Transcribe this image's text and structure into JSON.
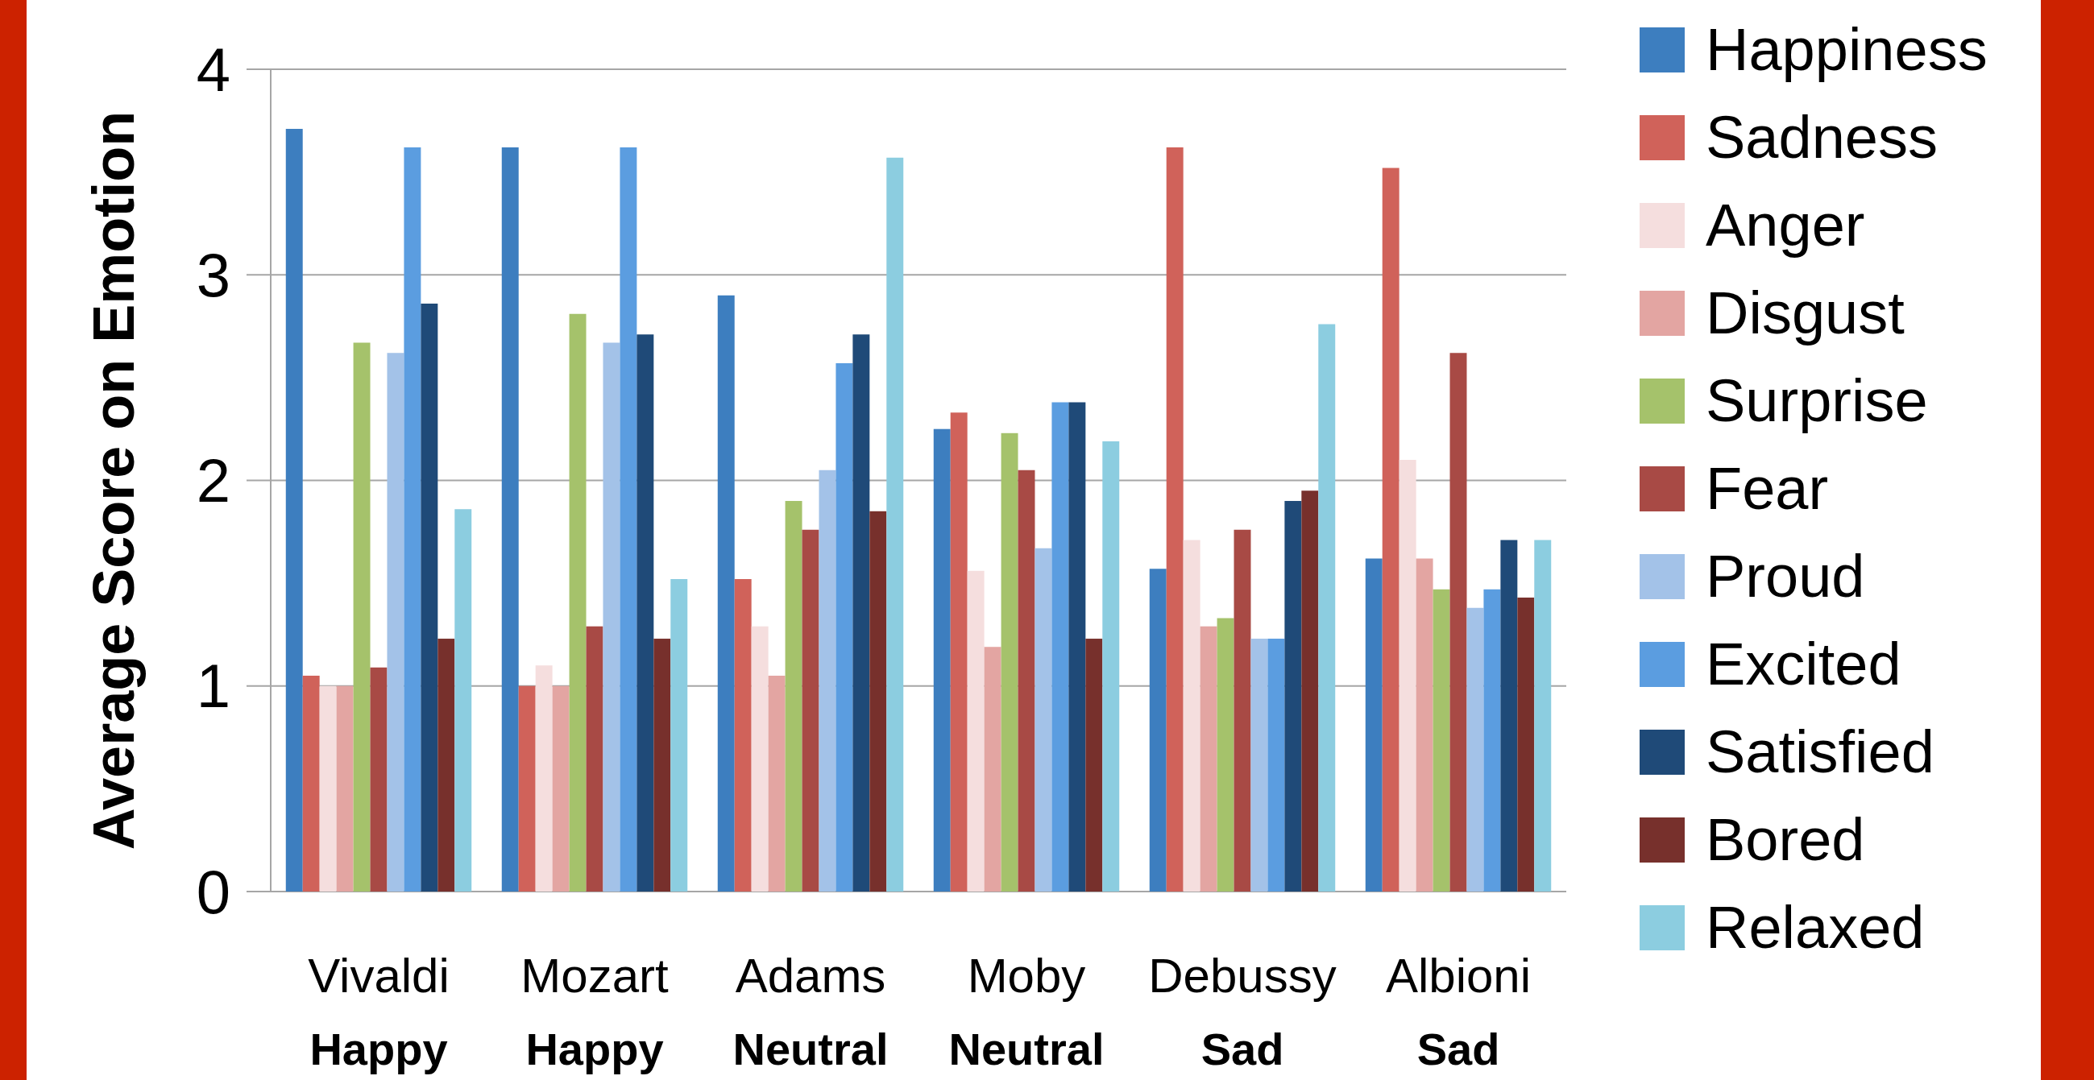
{
  "chart_data": {
    "type": "bar",
    "ylabel": "Average Score on Emotion",
    "categories": [
      "Vivaldi",
      "Mozart",
      "Adams",
      "Moby",
      "Debussy",
      "Albioni"
    ],
    "series": [
      {
        "name": "Happiness",
        "color": "#3d7ebf",
        "values": [
          3.71,
          3.62,
          2.9,
          2.25,
          1.57,
          1.62
        ]
      },
      {
        "name": "Sadness",
        "color": "#d0625a",
        "values": [
          1.05,
          1.0,
          1.52,
          2.33,
          3.62,
          3.52
        ]
      },
      {
        "name": "Anger",
        "color": "#f5dede",
        "values": [
          1.0,
          1.1,
          1.29,
          1.56,
          1.71,
          2.1
        ]
      },
      {
        "name": "Disgust",
        "color": "#e3a5a2",
        "values": [
          1.0,
          1.0,
          1.05,
          1.19,
          1.29,
          1.62
        ]
      },
      {
        "name": "Surprise",
        "color": "#a5c26b",
        "values": [
          2.67,
          2.81,
          1.9,
          2.23,
          1.33,
          1.47
        ]
      },
      {
        "name": "Fear",
        "color": "#a84a45",
        "values": [
          1.09,
          1.29,
          1.76,
          2.05,
          1.76,
          2.62
        ]
      },
      {
        "name": "Proud",
        "color": "#a3c2e8",
        "values": [
          2.62,
          2.67,
          2.05,
          1.67,
          1.23,
          1.38
        ]
      },
      {
        "name": "Excited",
        "color": "#5b9de0",
        "values": [
          3.62,
          3.62,
          2.57,
          2.38,
          1.23,
          1.47
        ]
      },
      {
        "name": "Satisfied",
        "color": "#1f4a78",
        "values": [
          2.86,
          2.71,
          2.71,
          2.38,
          1.9,
          1.71
        ]
      },
      {
        "name": "Bored",
        "color": "#77302c",
        "values": [
          1.23,
          1.23,
          1.85,
          1.23,
          1.95,
          1.43
        ]
      },
      {
        "name": "Relaxed",
        "color": "#8ccde0",
        "values": [
          1.86,
          1.52,
          3.57,
          2.19,
          2.76,
          1.71
        ]
      }
    ],
    "annotations": [
      "Happy",
      "Happy",
      "Neutral",
      "Neutral",
      "Sad",
      "Sad"
    ],
    "ylim": [
      0,
      4
    ],
    "yticks": [
      0,
      1,
      2,
      3,
      4
    ],
    "grid": "y",
    "legend": "right"
  }
}
